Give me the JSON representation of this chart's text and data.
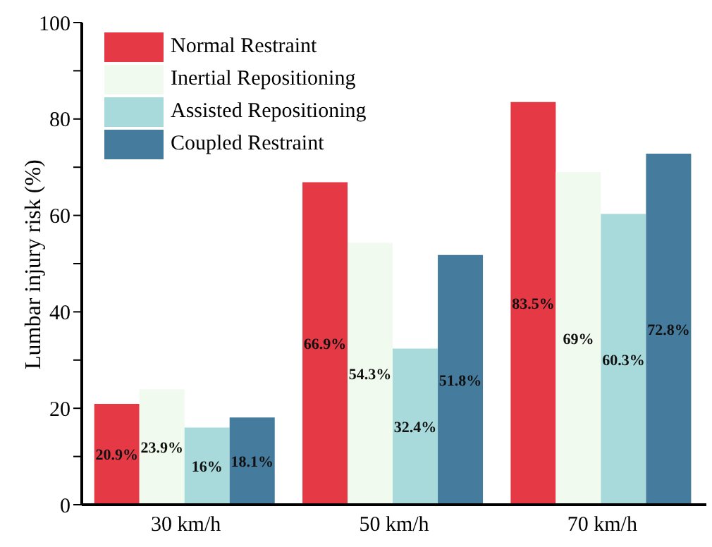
{
  "chart_data": {
    "type": "bar",
    "ylabel": "Lumbar injury risk (%)",
    "categories": [
      "30 km/h",
      "50 km/h",
      "70 km/h"
    ],
    "series": [
      {
        "name": "Normal Restraint",
        "color": "#e63946",
        "values": [
          20.9,
          66.9,
          83.5
        ],
        "value_labels": [
          "20.9%",
          "66.9%",
          "83.5%"
        ]
      },
      {
        "name": "Inertial Repositioning",
        "color": "#f1faee",
        "values": [
          23.9,
          54.3,
          69
        ],
        "value_labels": [
          "23.9%",
          "54.3%",
          "69%"
        ]
      },
      {
        "name": "Assisted Repositioning",
        "color": "#a8dadc",
        "values": [
          16,
          32.4,
          60.3
        ],
        "value_labels": [
          "16%",
          "32.4%",
          "60.3%"
        ]
      },
      {
        "name": "Coupled Restraint",
        "color": "#457b9d",
        "values": [
          18.1,
          51.8,
          72.8
        ],
        "value_labels": [
          "18.1%",
          "51.8%",
          "72.8%"
        ]
      }
    ],
    "ylim": [
      0,
      100
    ],
    "yticks": [
      0,
      {
        "value": 10,
        "label": null
      },
      20,
      {
        "value": 30,
        "label": null
      },
      40,
      {
        "value": 50,
        "label": null
      },
      60,
      {
        "value": 70,
        "label": null
      },
      80,
      {
        "value": 90,
        "label": null
      },
      100
    ],
    "grid": false,
    "legend": "top left"
  }
}
